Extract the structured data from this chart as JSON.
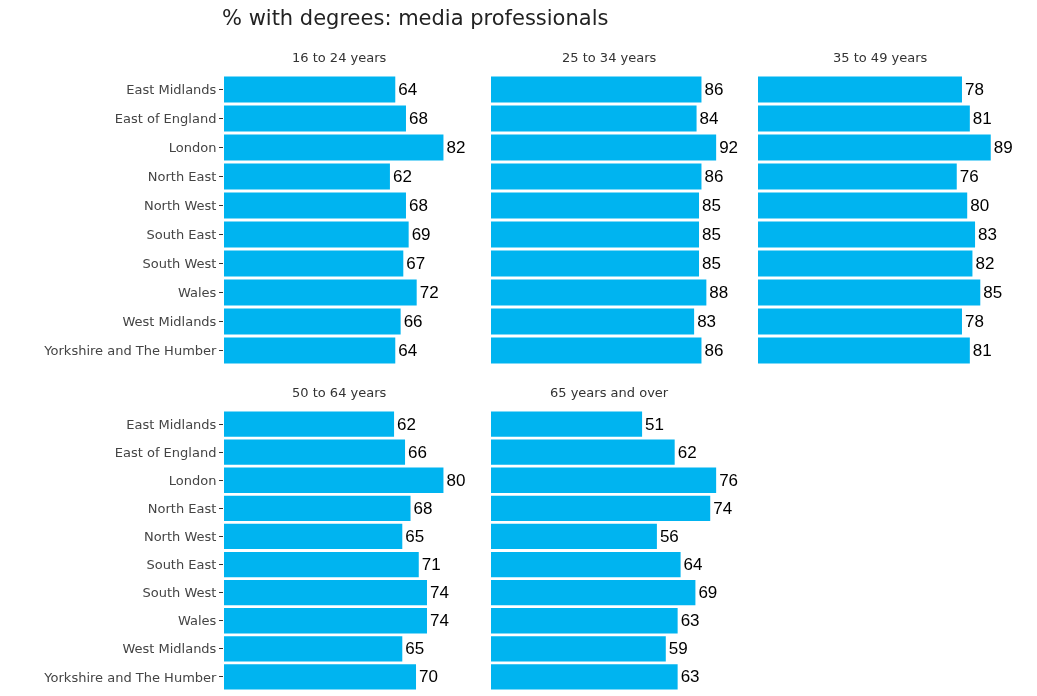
{
  "chart_data": [
    {
      "type": "bar",
      "title": "% with degrees: media professionals",
      "subtitle": "16 to 24 years",
      "orientation": "horizontal",
      "categories": [
        "East Midlands",
        "East of England",
        "London",
        "North East",
        "North West",
        "South East",
        "South West",
        "Wales",
        "West Midlands",
        "Yorkshire and The Humber"
      ],
      "values": [
        64,
        68,
        82,
        62,
        68,
        69,
        67,
        72,
        66,
        64
      ],
      "color": "#00b4f0",
      "data_labels": true,
      "tick_labels": "y"
    },
    {
      "type": "bar",
      "subtitle": "25 to 34 years",
      "orientation": "horizontal",
      "categories": [
        null,
        null,
        null,
        null,
        null,
        null,
        null,
        null,
        null,
        null
      ],
      "values": [
        86,
        84,
        92,
        86,
        85,
        85,
        85,
        88,
        83,
        86
      ],
      "color": "#00b4f0",
      "data_labels": true,
      "tick_labels": false
    },
    {
      "type": "bar",
      "subtitle": "35 to 49 years",
      "orientation": "horizontal",
      "categories": [
        null,
        null,
        null,
        null,
        null,
        null,
        null,
        null,
        null,
        null
      ],
      "values": [
        78,
        81,
        89,
        76,
        80,
        83,
        82,
        85,
        78,
        81
      ],
      "color": "#00b4f0",
      "data_labels": true,
      "tick_labels": false
    },
    {
      "type": "bar",
      "subtitle": "50 to 64 years",
      "orientation": "horizontal",
      "categories": [
        "East Midlands",
        "East of England",
        "London",
        "North East",
        "North West",
        "South East",
        "South West",
        "Wales",
        "West Midlands",
        "Yorkshire and The Humber"
      ],
      "values": [
        62,
        66,
        80,
        68,
        65,
        71,
        74,
        74,
        65,
        70
      ],
      "color": "#00b4f0",
      "data_labels": true,
      "tick_labels": "y"
    },
    {
      "type": "bar",
      "subtitle": "65 years and over",
      "orientation": "horizontal",
      "categories": [
        null,
        null,
        null,
        null,
        null,
        null,
        null,
        null,
        null,
        null
      ],
      "values": [
        51,
        62,
        76,
        74,
        56,
        64,
        69,
        63,
        59,
        63
      ],
      "color": "#00b4f0",
      "data_labels": true,
      "tick_labels": false
    }
  ]
}
